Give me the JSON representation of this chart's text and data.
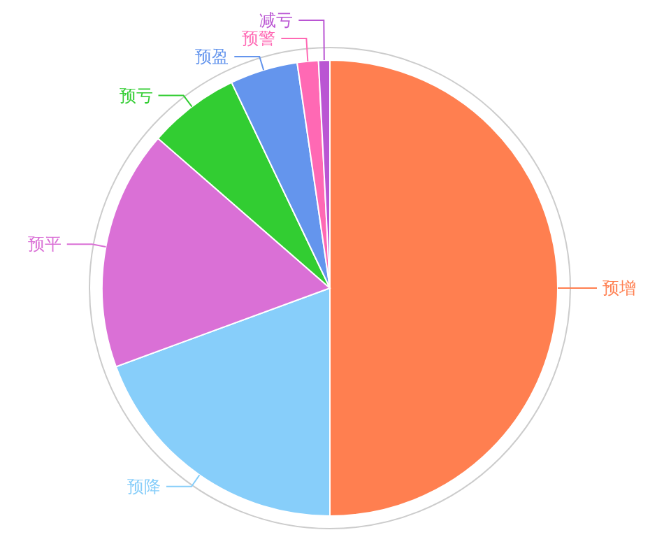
{
  "chart_data": {
    "type": "pie",
    "categories": [
      "预增",
      "预降",
      "预平",
      "预亏",
      "预盈",
      "预警",
      "减亏"
    ],
    "values": [
      50,
      19.4,
      17,
      6.5,
      4.8,
      1.5,
      0.8
    ],
    "colors": [
      "#ff7f50",
      "#87cefa",
      "#da70d6",
      "#32cd32",
      "#6495ed",
      "#ff69b4",
      "#ba55d3"
    ]
  }
}
